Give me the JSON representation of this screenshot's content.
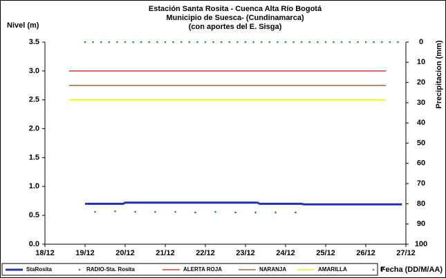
{
  "chart_data": {
    "type": "line",
    "title": [
      "Estación Santa Rosita - Cuenca Alta Río Bogotá",
      "Municipio de Suesca- (Cundinamarca)",
      "(con aportes del  E. Sisga)"
    ],
    "y_label": "Nivel (m)",
    "y2_label": "Precipitacion (mm)",
    "x_label": "Fecha (DD/M/AA)",
    "xlim": [
      18,
      27
    ],
    "xticks": [
      {
        "value": 18,
        "label": "18/12"
      },
      {
        "value": 19,
        "label": "19/12"
      },
      {
        "value": 20,
        "label": "20/12"
      },
      {
        "value": 21,
        "label": "21/12"
      },
      {
        "value": 22,
        "label": "22/12"
      },
      {
        "value": 23,
        "label": "23/12"
      },
      {
        "value": 24,
        "label": "24/12"
      },
      {
        "value": 25,
        "label": "25/12"
      },
      {
        "value": 26,
        "label": "26/12"
      },
      {
        "value": 27,
        "label": "27/12"
      }
    ],
    "ylim": [
      0,
      3.5
    ],
    "yticks": [
      {
        "value": 0,
        "label": "0.0"
      },
      0.5,
      {
        "value": 1,
        "label": "1.0"
      },
      1.5,
      {
        "value": 2,
        "label": "2.0"
      },
      2.5,
      {
        "value": 3,
        "label": "3.0"
      },
      3.5
    ],
    "y2lim": [
      100,
      0
    ],
    "y2ticks": [
      0,
      10,
      20,
      30,
      40,
      50,
      60,
      70,
      80,
      90,
      100
    ],
    "legend": "bottom",
    "series": [
      {
        "name": "StaRosita",
        "color": "#1f2fbf",
        "style": "line",
        "width": 3,
        "x": [
          19,
          19.95,
          20,
          23.3,
          23.35,
          24.4,
          24.45,
          26.9
        ],
        "values": [
          0.7,
          0.7,
          0.72,
          0.72,
          0.7,
          0.7,
          0.69,
          0.69
        ]
      },
      {
        "name": "RADIO-Sta. Rosita",
        "color": "#2e7d5b",
        "style": "markers",
        "x": [
          19.25,
          19.75,
          20.25,
          20.75,
          21.25,
          21.75,
          22.25,
          22.75,
          23.25,
          23.75,
          24.25
        ],
        "values": [
          0.56,
          0.57,
          0.56,
          0.56,
          0.56,
          0.55,
          0.56,
          0.55,
          0.55,
          0.55,
          0.55
        ]
      },
      {
        "name": "ALERTA ROJA",
        "color": "#e8302a",
        "style": "line",
        "width": 1.5,
        "x": [
          18.6,
          26.5
        ],
        "values": [
          3.0,
          3.0
        ]
      },
      {
        "name": "NARANJA",
        "color": "#9a6a3a",
        "style": "line",
        "width": 1.5,
        "x": [
          18.6,
          26.5
        ],
        "values": [
          2.75,
          2.75
        ]
      },
      {
        "name": "AMARILLA",
        "color": "#f2f200",
        "style": "line",
        "width": 1.5,
        "x": [
          18.6,
          26.5
        ],
        "values": [
          2.5,
          2.5
        ]
      },
      {
        "name": "P",
        "color": "#1a9a2a",
        "style": "markers",
        "axis": "y2",
        "x": [
          19.0,
          19.2,
          19.4,
          19.6,
          19.8,
          20.0,
          20.2,
          20.4,
          20.6,
          20.8,
          21.0,
          21.2,
          21.4,
          21.6,
          21.8,
          22.0,
          22.2,
          22.4,
          22.6,
          22.8,
          23.0,
          23.2,
          23.4,
          23.6,
          23.8,
          24.0,
          24.2,
          24.4,
          24.6,
          24.8,
          25.0,
          25.2,
          25.4,
          25.6,
          25.8,
          26.0,
          26.2,
          26.4,
          26.6,
          26.8
        ],
        "values": [
          0,
          0,
          0,
          0,
          0,
          0,
          0,
          0,
          0,
          0,
          0,
          0,
          0,
          0,
          0,
          0,
          0,
          0,
          0,
          0,
          0,
          0,
          0,
          0,
          0,
          0,
          0,
          0,
          0,
          0,
          0,
          0,
          0,
          0,
          0,
          0,
          0,
          0,
          0,
          0
        ]
      }
    ]
  }
}
